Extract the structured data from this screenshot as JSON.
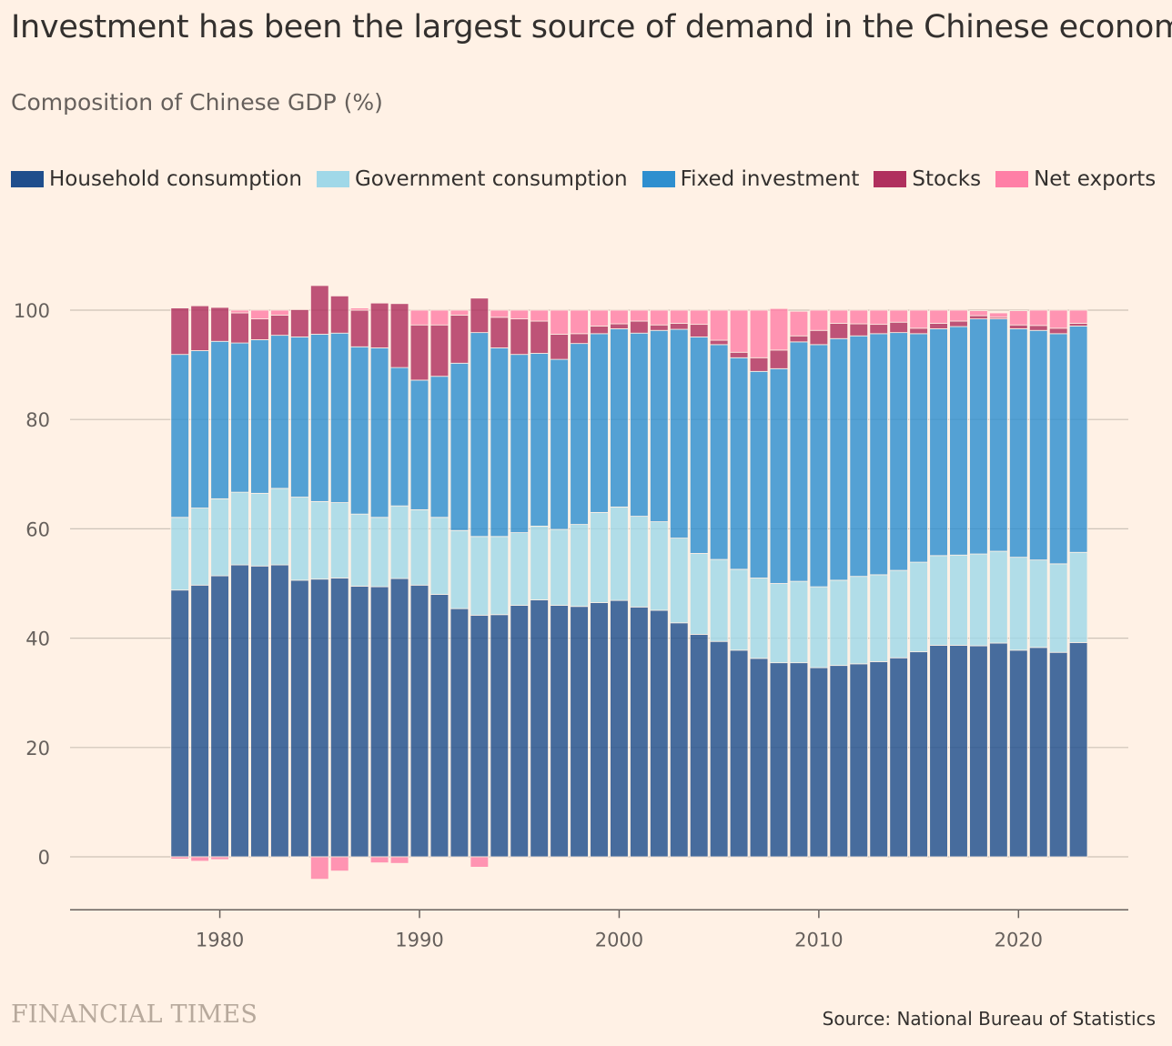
{
  "header": {
    "title": "Investment has been the largest source of demand in the Chinese economy",
    "subtitle": "Composition of Chinese GDP (%)"
  },
  "footer": {
    "brand": "FINANCIAL TIMES",
    "source": "Source: National Bureau of Statistics"
  },
  "colors": {
    "background": "#FFF1E5",
    "household": "#1F4E8C",
    "government": "#A0D8E8",
    "investment": "#2E8FCF",
    "stocks": "#B0305E",
    "net_exports": "#FF7FA6",
    "gridline": "#CDC3B8",
    "axis": "#66605C"
  },
  "chart_data": {
    "type": "bar",
    "stacked": true,
    "title": "Investment has been the largest source of demand in the Chinese economy",
    "subtitle": "Composition of Chinese GDP (%)",
    "xlabel": "",
    "ylabel": "",
    "ylim": [
      -10,
      110
    ],
    "xlim": [
      1972.5,
      2025.5
    ],
    "yticks": [
      0,
      20,
      40,
      60,
      80,
      100
    ],
    "xticks": [
      1980,
      1990,
      2000,
      2010,
      2020
    ],
    "grid": true,
    "legend_position": "top-left",
    "x": [
      1978,
      1979,
      1980,
      1981,
      1982,
      1983,
      1984,
      1985,
      1986,
      1987,
      1988,
      1989,
      1990,
      1991,
      1992,
      1993,
      1994,
      1995,
      1996,
      1997,
      1998,
      1999,
      2000,
      2001,
      2002,
      2003,
      2004,
      2005,
      2006,
      2007,
      2008,
      2009,
      2010,
      2011,
      2012,
      2013,
      2014,
      2015,
      2016,
      2017,
      2018,
      2019,
      2020,
      2021,
      2022,
      2023
    ],
    "series": [
      {
        "name": "Household consumption",
        "color": "#1F4E8C",
        "values": [
          48.8,
          49.7,
          51.4,
          53.4,
          53.2,
          53.4,
          50.6,
          50.8,
          51.0,
          49.5,
          49.4,
          50.9,
          49.7,
          48.0,
          45.4,
          44.2,
          44.3,
          46.0,
          47.0,
          46.0,
          45.8,
          46.5,
          46.9,
          45.7,
          45.1,
          42.8,
          40.7,
          39.4,
          37.8,
          36.3,
          35.5,
          35.5,
          34.6,
          35.0,
          35.3,
          35.7,
          36.4,
          37.5,
          38.7,
          38.7,
          38.6,
          39.1,
          37.8,
          38.3,
          37.4,
          39.2
        ]
      },
      {
        "name": "Government consumption",
        "color": "#A0D8E8",
        "values": [
          13.3,
          14.1,
          14.1,
          13.3,
          13.3,
          14.0,
          15.2,
          14.2,
          13.8,
          13.2,
          12.7,
          13.3,
          13.8,
          14.1,
          14.3,
          14.4,
          14.3,
          13.3,
          13.5,
          13.9,
          15.0,
          16.5,
          17.1,
          16.6,
          16.2,
          15.5,
          14.8,
          15.0,
          14.8,
          14.7,
          14.5,
          14.9,
          14.8,
          15.6,
          16.0,
          15.9,
          16.0,
          16.4,
          16.4,
          16.5,
          16.8,
          16.8,
          17.0,
          16.0,
          16.2,
          16.5
        ]
      },
      {
        "name": "Fixed investment",
        "color": "#2E8FCF",
        "values": [
          29.8,
          28.8,
          28.8,
          27.3,
          28.1,
          28.0,
          29.3,
          30.6,
          31.0,
          30.6,
          31.0,
          25.3,
          23.7,
          25.8,
          30.6,
          37.3,
          34.5,
          32.6,
          31.6,
          31.1,
          33.1,
          32.7,
          32.6,
          33.5,
          35.0,
          38.2,
          39.6,
          39.3,
          38.7,
          37.8,
          39.3,
          43.8,
          44.3,
          44.2,
          44.0,
          44.1,
          43.5,
          41.8,
          41.5,
          41.8,
          43.0,
          42.5,
          41.8,
          42.0,
          42.1,
          41.4
        ]
      },
      {
        "name": "Stocks",
        "color": "#B0305E",
        "values": [
          8.5,
          8.2,
          6.2,
          5.5,
          3.8,
          3.7,
          5.0,
          8.9,
          6.8,
          6.7,
          8.2,
          11.7,
          10.1,
          9.4,
          8.8,
          6.3,
          5.6,
          6.5,
          5.9,
          4.6,
          1.8,
          1.4,
          0.9,
          2.2,
          1.0,
          1.1,
          2.3,
          0.8,
          1.0,
          2.5,
          3.4,
          1.1,
          2.6,
          2.8,
          2.2,
          1.7,
          1.9,
          1.0,
          1.0,
          1.0,
          0.6,
          0.3,
          0.7,
          0.9,
          1.0,
          0.5
        ]
      },
      {
        "name": "Net exports",
        "color": "#FF7FA6",
        "values": [
          -0.4,
          -0.8,
          -0.5,
          0.5,
          1.6,
          0.9,
          -0.1,
          -4.1,
          -2.6,
          0.4,
          -1.1,
          -1.2,
          2.7,
          2.7,
          0.9,
          -1.9,
          1.3,
          1.6,
          2.0,
          4.4,
          4.3,
          2.9,
          2.5,
          2.0,
          2.7,
          2.4,
          2.6,
          5.5,
          7.7,
          8.7,
          7.6,
          4.5,
          3.7,
          2.4,
          2.5,
          2.6,
          2.2,
          3.3,
          2.4,
          2.0,
          0.9,
          0.8,
          2.6,
          2.8,
          3.3,
          2.4
        ]
      }
    ]
  }
}
